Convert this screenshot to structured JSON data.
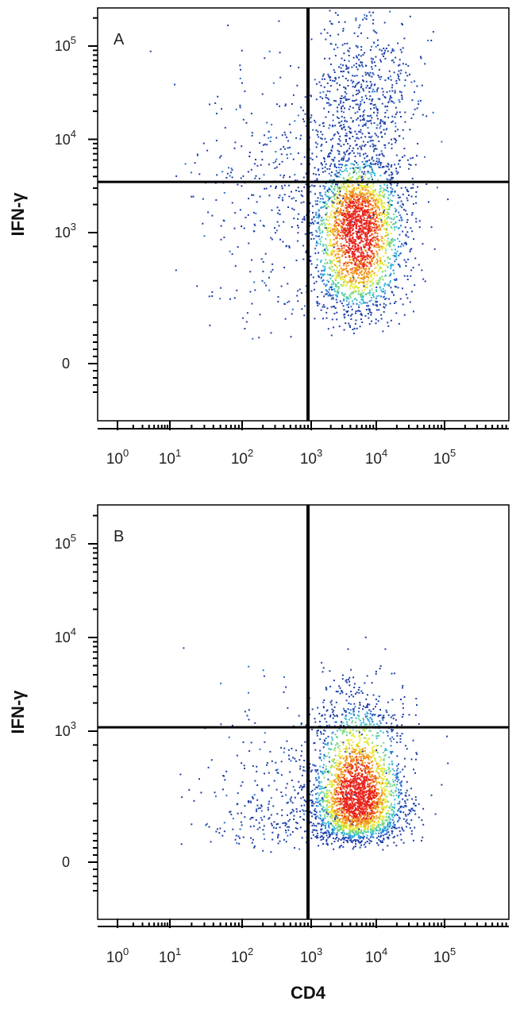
{
  "chart_data": [
    {
      "type": "scatter",
      "panel_label": "A",
      "xlabel": "",
      "ylabel": "IFN-γ",
      "x_scale": "biexponential",
      "y_scale": "biexponential",
      "x_tick_labels": [
        {
          "base": "10",
          "exp": "0"
        },
        {
          "base": "10",
          "exp": "1"
        },
        {
          "base": "10",
          "exp": "2"
        },
        {
          "base": "10",
          "exp": "3"
        },
        {
          "base": "10",
          "exp": "4"
        },
        {
          "base": "10",
          "exp": "5"
        }
      ],
      "y_tick_labels": [
        {
          "base": "",
          "exp": "",
          "text": "0"
        },
        {
          "base": "10",
          "exp": "3"
        },
        {
          "base": "10",
          "exp": "4"
        },
        {
          "base": "10",
          "exp": "5"
        }
      ],
      "quadrant_gate": {
        "x": 900,
        "y": 3500
      },
      "populations": [
        {
          "center": [
            5000,
            1100
          ],
          "spread_decades": [
            0.35,
            0.4
          ],
          "events": 2600,
          "density": "high"
        },
        {
          "center": [
            6000,
            25000
          ],
          "spread_decades": [
            0.4,
            0.5
          ],
          "events": 700,
          "density": "low"
        },
        {
          "center": [
            300,
            3000
          ],
          "spread_decades": [
            0.55,
            0.7
          ],
          "events": 350,
          "density": "low"
        }
      ]
    },
    {
      "type": "scatter",
      "panel_label": "B",
      "xlabel": "CD4",
      "ylabel": "IFN-γ",
      "x_scale": "biexponential",
      "y_scale": "biexponential",
      "x_tick_labels": [
        {
          "base": "10",
          "exp": "0"
        },
        {
          "base": "10",
          "exp": "1"
        },
        {
          "base": "10",
          "exp": "2"
        },
        {
          "base": "10",
          "exp": "3"
        },
        {
          "base": "10",
          "exp": "4"
        },
        {
          "base": "10",
          "exp": "5"
        }
      ],
      "y_tick_labels": [
        {
          "base": "",
          "exp": "",
          "text": "0"
        },
        {
          "base": "10",
          "exp": "3"
        },
        {
          "base": "10",
          "exp": "4"
        },
        {
          "base": "10",
          "exp": "5"
        }
      ],
      "quadrant_gate": {
        "x": 900,
        "y": 1100
      },
      "populations": [
        {
          "center": [
            5000,
            250
          ],
          "spread_decades": [
            0.35,
            0.45
          ],
          "events": 2800,
          "density": "high"
        },
        {
          "center": [
            300,
            200
          ],
          "spread_decades": [
            0.55,
            0.5
          ],
          "events": 300,
          "density": "low"
        },
        {
          "center": [
            5000,
            1500
          ],
          "spread_decades": [
            0.25,
            0.2
          ],
          "events": 25,
          "density": "low"
        }
      ]
    }
  ],
  "colors": {
    "density_scale": [
      "#1f3fa8",
      "#2a6fd1",
      "#33b8d9",
      "#6fd68a",
      "#e8e83a",
      "#f0901e",
      "#e8261e"
    ],
    "gate_line": "#000000",
    "frame": "#000000"
  }
}
